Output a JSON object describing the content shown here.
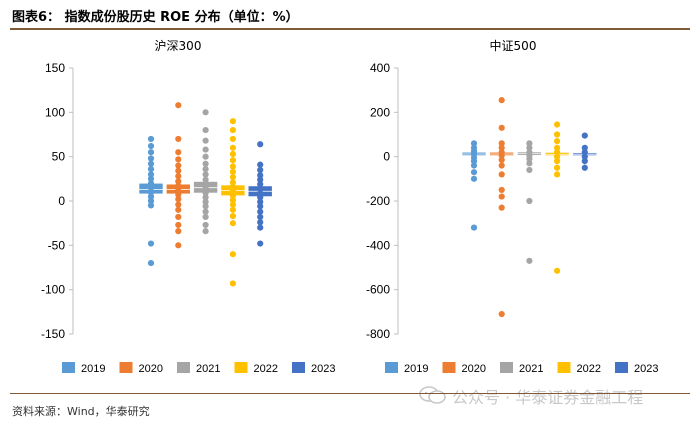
{
  "header": {
    "title": "图表6： 指数成份股历史 ROE 分布（单位：%）"
  },
  "footer": {
    "source": "资料来源：Wind，华泰研究"
  },
  "watermark": {
    "text": "公众号 · 华泰证券金融工程",
    "icon": "wechat-icon"
  },
  "colors": {
    "2019": "#5b9bd5",
    "2020": "#ed7d31",
    "2021": "#a5a5a5",
    "2022": "#ffc000",
    "2023": "#4472c4"
  },
  "chart_data": [
    {
      "type": "box-scatter",
      "title": "沪深300",
      "ylim": [
        -150,
        150
      ],
      "yticks": [
        150,
        100,
        50,
        0,
        -50,
        -100,
        -150
      ],
      "ytick_labels": [
        "150",
        "100",
        "50",
        "0",
        "-50",
        "-100",
        "-150"
      ],
      "legend": [
        "2019",
        "2020",
        "2021",
        "2022",
        "2023"
      ],
      "series": [
        {
          "name": "2019",
          "box": [
            8,
            13,
            20
          ],
          "points": [
            70,
            62,
            55,
            48,
            42,
            36,
            30,
            25,
            20,
            15,
            10,
            5,
            0,
            -5,
            -48,
            -70
          ]
        },
        {
          "name": "2020",
          "box": [
            8,
            13,
            19
          ],
          "points": [
            108,
            70,
            55,
            47,
            40,
            34,
            28,
            22,
            17,
            12,
            7,
            2,
            -4,
            -10,
            -18,
            -27,
            -34,
            -50
          ]
        },
        {
          "name": "2021",
          "box": [
            9,
            15,
            22
          ],
          "points": [
            100,
            80,
            68,
            58,
            50,
            42,
            36,
            30,
            24,
            19,
            14,
            9,
            4,
            -1,
            -6,
            -12,
            -18,
            -27,
            -34
          ]
        },
        {
          "name": "2022",
          "box": [
            6,
            12,
            18
          ],
          "points": [
            90,
            80,
            70,
            60,
            53,
            46,
            39,
            33,
            27,
            21,
            16,
            11,
            6,
            1,
            -4,
            -10,
            -17,
            -25,
            -60,
            -93
          ]
        },
        {
          "name": "2023",
          "box": [
            5,
            11,
            17
          ],
          "points": [
            64,
            41,
            35,
            29,
            24,
            19,
            14,
            9,
            4,
            -1,
            -6,
            -12,
            -18,
            -24,
            -30,
            -48
          ]
        }
      ]
    },
    {
      "type": "box-scatter",
      "title": "中证500",
      "ylim": [
        -800,
        400
      ],
      "yticks": [
        400,
        200,
        0,
        -200,
        -400,
        -600,
        -800
      ],
      "ytick_labels": [
        "400",
        "200",
        "0",
        "-200",
        "-400",
        "-600",
        "-800"
      ],
      "legend": [
        "2019",
        "2020",
        "2021",
        "2022",
        "2023"
      ],
      "series": [
        {
          "name": "2019",
          "box": [
            5,
            12,
            20
          ],
          "points": [
            60,
            40,
            25,
            10,
            -5,
            -20,
            -40,
            -70,
            -100,
            -320
          ]
        },
        {
          "name": "2020",
          "box": [
            5,
            12,
            20
          ],
          "points": [
            255,
            130,
            60,
            40,
            20,
            5,
            -15,
            -40,
            -80,
            -150,
            -180,
            -230,
            -710
          ]
        },
        {
          "name": "2021",
          "box": [
            6,
            13,
            21
          ],
          "points": [
            60,
            40,
            20,
            5,
            -10,
            -30,
            -60,
            -200,
            -470
          ]
        },
        {
          "name": "2022",
          "box": [
            5,
            11,
            19
          ],
          "points": [
            145,
            100,
            70,
            40,
            20,
            0,
            -20,
            -50,
            -80,
            -515
          ]
        },
        {
          "name": "2023",
          "box": [
            5,
            11,
            17
          ],
          "points": [
            95,
            40,
            20,
            0,
            -20,
            -50
          ]
        }
      ]
    }
  ]
}
